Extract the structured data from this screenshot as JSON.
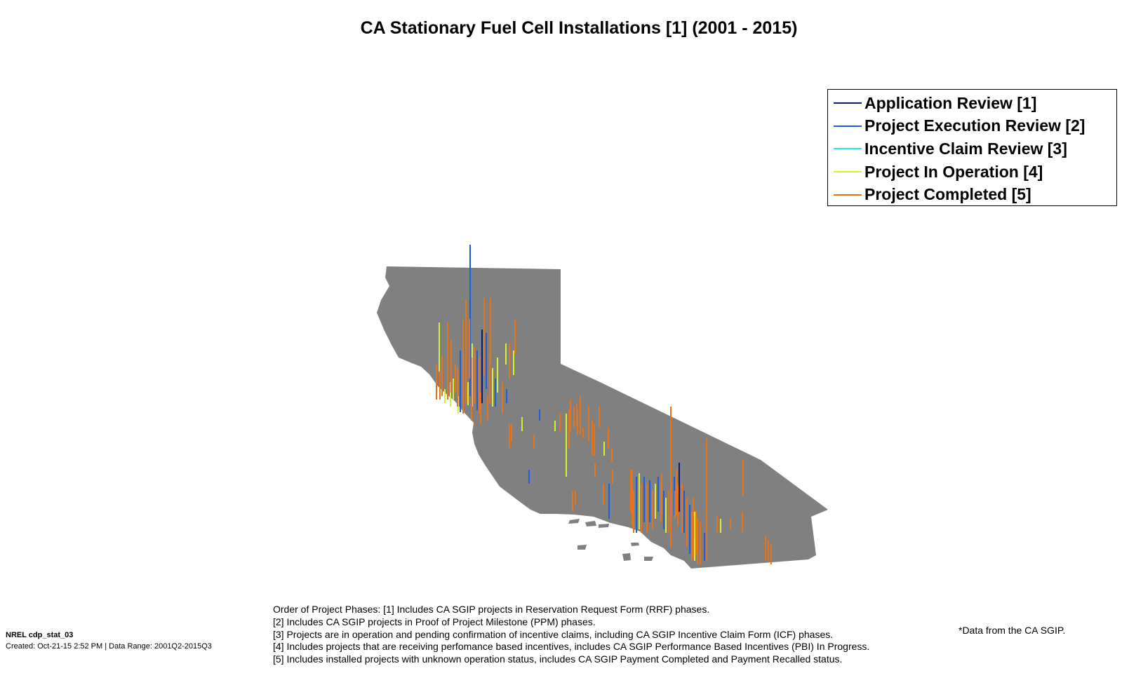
{
  "title": "CA Stationary Fuel Cell Installations [1] (2001 - 2015)",
  "legend": [
    {
      "label": "Application Review [1]",
      "color": "#0a1a6e"
    },
    {
      "label": "Project Execution Review [2]",
      "color": "#1a5fd8"
    },
    {
      "label": "Incentive Claim Review [3]",
      "color": "#33e0f0"
    },
    {
      "label": "Project In Operation [4]",
      "color": "#d8ee30"
    },
    {
      "label": "Project Completed [5]",
      "color": "#e8741a"
    }
  ],
  "map": {
    "region": "California",
    "fill_color": "#808080",
    "bar_width_note": "vertical bars denote installations by phase"
  },
  "notes": [
    "Order of Project Phases: [1] Includes CA SGIP projects in Reservation Request Form (RRF) phases.",
    "[2] Includes CA SGIP projects in Proof of Project Milestone (PPM) phases.",
    "[3] Projects are in operation and pending confirmation of incentive claims, including CA SGIP Incentive Claim Form (ICF) phases.",
    "[4] Includes projects that are receiving perfomance based incentives, includes CA SGIP Performance Based Incentives (PBI) In Progress.",
    "[5] Includes installed projects with unknown operation status, includes CA SGIP Payment Completed and Payment Recalled status."
  ],
  "credit": {
    "id": "NREL cdp_stat_03",
    "created": "Created: Oct-21-15  2:52 PM | Data Range: 2001Q2-2015Q3"
  },
  "source_note": "*Data from the CA SGIP."
}
